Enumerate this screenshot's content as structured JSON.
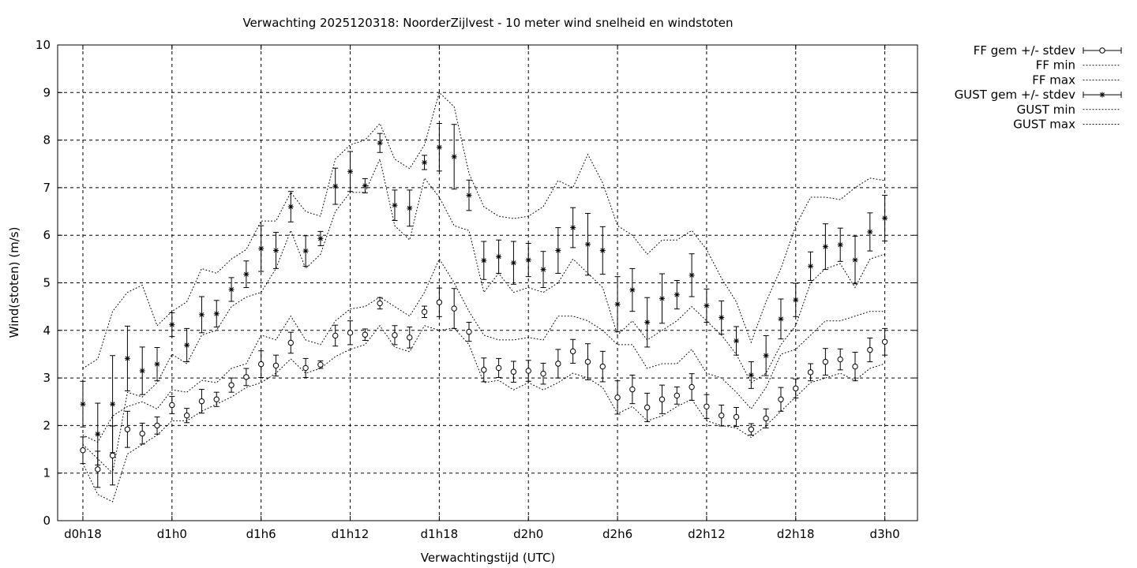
{
  "chart_data": {
    "type": "scatter",
    "title": "Verwachting 2025120318: NoorderZijlvest - 10 meter wind snelheid en windstoten",
    "xlabel": "Verwachtingstijd (UTC)",
    "ylabel": "Wind(stoten) (m/s)",
    "x_unit": "hours since d0h18",
    "xlim": [
      -1.7,
      56.2
    ],
    "ylim": [
      0,
      10
    ],
    "y_ticks": [
      0,
      1,
      2,
      3,
      4,
      5,
      6,
      7,
      8,
      9,
      10
    ],
    "x_tick_labels": [
      {
        "x": 0,
        "label": "d0h18"
      },
      {
        "x": 6,
        "label": "d1h0"
      },
      {
        "x": 12,
        "label": "d1h6"
      },
      {
        "x": 18,
        "label": "d1h12"
      },
      {
        "x": 24,
        "label": "d1h18"
      },
      {
        "x": 30,
        "label": "d2h0"
      },
      {
        "x": 36,
        "label": "d2h6"
      },
      {
        "x": 42,
        "label": "d2h12"
      },
      {
        "x": 48,
        "label": "d2h18"
      },
      {
        "x": 54,
        "label": "d3h0"
      }
    ],
    "grid": true,
    "legend_position": "outside-top-right",
    "series": [
      {
        "name": "FF gem +/- stdev",
        "style": "errorbar",
        "marker": "circle",
        "x": [
          0,
          1,
          2,
          3,
          4,
          5,
          6,
          7,
          8,
          9,
          10,
          11,
          12,
          13,
          14,
          15,
          16,
          17,
          18,
          19,
          20,
          21,
          22,
          23,
          24,
          25,
          26,
          27,
          28,
          29,
          30,
          31,
          32,
          33,
          34,
          35,
          36,
          37,
          38,
          39,
          40,
          41,
          42,
          43,
          44,
          45,
          46,
          47,
          48,
          49,
          50,
          51,
          52,
          53,
          54
        ],
        "mean": [
          1.48,
          1.08,
          1.37,
          1.92,
          1.83,
          2.0,
          2.43,
          2.21,
          2.51,
          2.55,
          2.85,
          3.02,
          3.29,
          3.26,
          3.74,
          3.21,
          3.28,
          3.89,
          3.95,
          3.91,
          4.57,
          3.9,
          3.85,
          4.39,
          4.59,
          4.46,
          3.97,
          3.17,
          3.21,
          3.13,
          3.15,
          3.09,
          3.3,
          3.56,
          3.34,
          3.24,
          2.59,
          2.76,
          2.38,
          2.55,
          2.63,
          2.81,
          2.4,
          2.21,
          2.18,
          1.92,
          2.15,
          2.55,
          2.78,
          3.12,
          3.34,
          3.39,
          3.24,
          3.59,
          3.76
        ],
        "stdev": [
          0.28,
          0.38,
          0.62,
          0.38,
          0.22,
          0.18,
          0.18,
          0.15,
          0.25,
          0.15,
          0.15,
          0.18,
          0.28,
          0.22,
          0.22,
          0.2,
          0.08,
          0.22,
          0.25,
          0.12,
          0.12,
          0.2,
          0.22,
          0.12,
          0.3,
          0.42,
          0.2,
          0.25,
          0.2,
          0.22,
          0.22,
          0.22,
          0.3,
          0.25,
          0.38,
          0.32,
          0.35,
          0.3,
          0.3,
          0.3,
          0.18,
          0.28,
          0.25,
          0.22,
          0.2,
          0.12,
          0.2,
          0.25,
          0.2,
          0.18,
          0.28,
          0.22,
          0.3,
          0.25,
          0.28
        ]
      },
      {
        "name": "FF min",
        "style": "dotted",
        "x": [
          0,
          1,
          2,
          3,
          4,
          5,
          6,
          7,
          8,
          9,
          10,
          11,
          12,
          13,
          14,
          15,
          16,
          17,
          18,
          19,
          20,
          21,
          22,
          23,
          24,
          25,
          26,
          27,
          28,
          29,
          30,
          31,
          32,
          33,
          34,
          35,
          36,
          37,
          38,
          39,
          40,
          41,
          42,
          43,
          44,
          45,
          46,
          47,
          48,
          49,
          50,
          51,
          52,
          53,
          54
        ],
        "values": [
          1.2,
          0.55,
          0.4,
          1.4,
          1.6,
          1.8,
          2.1,
          2.1,
          2.3,
          2.45,
          2.6,
          2.8,
          2.9,
          3.1,
          3.4,
          3.1,
          3.2,
          3.45,
          3.6,
          3.7,
          4.1,
          3.65,
          3.55,
          4.1,
          4.0,
          4.05,
          3.7,
          2.9,
          2.95,
          2.75,
          2.9,
          2.75,
          2.9,
          3.1,
          3.0,
          2.8,
          2.25,
          2.4,
          2.1,
          2.2,
          2.4,
          2.55,
          2.1,
          2.0,
          1.95,
          1.75,
          2.0,
          2.3,
          2.6,
          2.9,
          3.0,
          3.1,
          2.95,
          3.2,
          3.3
        ]
      },
      {
        "name": "FF max",
        "style": "dotted",
        "x": [
          0,
          1,
          2,
          3,
          4,
          5,
          6,
          7,
          8,
          9,
          10,
          11,
          12,
          13,
          14,
          15,
          16,
          17,
          18,
          19,
          20,
          21,
          22,
          23,
          24,
          25,
          26,
          27,
          28,
          29,
          30,
          31,
          32,
          33,
          34,
          35,
          36,
          37,
          38,
          39,
          40,
          41,
          42,
          43,
          44,
          45,
          46,
          47,
          48,
          49,
          50,
          51,
          52,
          53,
          54
        ],
        "values": [
          1.8,
          1.65,
          2.2,
          2.4,
          2.5,
          2.35,
          2.75,
          2.7,
          2.95,
          2.9,
          3.2,
          3.3,
          3.9,
          3.8,
          4.3,
          3.8,
          3.7,
          4.2,
          4.45,
          4.5,
          4.7,
          4.5,
          4.3,
          4.8,
          5.5,
          5.0,
          4.4,
          3.9,
          3.8,
          3.8,
          3.85,
          3.8,
          4.3,
          4.3,
          4.2,
          4.0,
          3.7,
          3.7,
          3.2,
          3.3,
          3.3,
          3.6,
          3.1,
          3.0,
          2.7,
          2.35,
          2.8,
          3.5,
          3.6,
          3.9,
          4.2,
          4.2,
          4.3,
          4.4,
          4.4
        ]
      },
      {
        "name": "GUST gem +/- stdev",
        "style": "errorbar",
        "marker": "star",
        "x": [
          0,
          1,
          2,
          3,
          4,
          5,
          6,
          7,
          8,
          9,
          10,
          11,
          12,
          13,
          14,
          15,
          16,
          17,
          18,
          19,
          20,
          21,
          22,
          23,
          24,
          25,
          26,
          27,
          28,
          29,
          30,
          31,
          32,
          33,
          34,
          35,
          36,
          37,
          38,
          39,
          40,
          41,
          42,
          43,
          44,
          45,
          46,
          47,
          48,
          49,
          50,
          51,
          52,
          53,
          54
        ],
        "mean": [
          2.45,
          1.82,
          2.45,
          3.41,
          3.15,
          3.29,
          4.12,
          3.69,
          4.33,
          4.35,
          4.86,
          5.18,
          5.72,
          5.68,
          6.6,
          5.67,
          5.93,
          7.03,
          7.34,
          7.04,
          7.94,
          6.63,
          6.57,
          7.53,
          7.85,
          7.65,
          6.84,
          5.47,
          5.55,
          5.42,
          5.48,
          5.28,
          5.68,
          6.16,
          5.81,
          5.68,
          4.55,
          4.85,
          4.17,
          4.67,
          4.75,
          5.16,
          4.52,
          4.27,
          3.78,
          3.06,
          3.47,
          4.24,
          4.64,
          5.35,
          5.76,
          5.8,
          5.48,
          6.07,
          6.36
        ],
        "stdev": [
          0.48,
          0.65,
          1.02,
          0.68,
          0.5,
          0.35,
          0.25,
          0.35,
          0.38,
          0.28,
          0.25,
          0.28,
          0.48,
          0.38,
          0.32,
          0.32,
          0.15,
          0.38,
          0.42,
          0.15,
          0.2,
          0.32,
          0.38,
          0.15,
          0.5,
          0.68,
          0.32,
          0.4,
          0.35,
          0.45,
          0.35,
          0.38,
          0.48,
          0.42,
          0.65,
          0.5,
          0.58,
          0.45,
          0.52,
          0.52,
          0.3,
          0.45,
          0.35,
          0.35,
          0.3,
          0.28,
          0.42,
          0.42,
          0.35,
          0.3,
          0.48,
          0.35,
          0.5,
          0.4,
          0.48
        ]
      },
      {
        "name": "GUST min",
        "style": "dotted",
        "x": [
          0,
          1,
          2,
          3,
          4,
          5,
          6,
          7,
          8,
          9,
          10,
          11,
          12,
          13,
          14,
          15,
          16,
          17,
          18,
          19,
          20,
          21,
          22,
          23,
          24,
          25,
          26,
          27,
          28,
          29,
          30,
          31,
          32,
          33,
          34,
          35,
          36,
          37,
          38,
          39,
          40,
          41,
          42,
          43,
          44,
          45,
          46,
          47,
          48,
          49,
          50,
          51,
          52,
          53,
          54
        ],
        "values": [
          1.6,
          1.3,
          1.0,
          2.7,
          2.6,
          2.9,
          3.5,
          3.3,
          3.9,
          4.0,
          4.5,
          4.7,
          4.8,
          5.3,
          6.1,
          5.3,
          5.6,
          6.5,
          6.9,
          6.9,
          7.6,
          6.2,
          5.9,
          7.2,
          6.8,
          6.2,
          6.1,
          4.8,
          5.2,
          4.8,
          4.9,
          4.8,
          5.0,
          5.5,
          5.2,
          4.9,
          3.9,
          4.2,
          3.8,
          4.0,
          4.2,
          4.5,
          4.2,
          3.9,
          3.5,
          2.9,
          3.1,
          3.7,
          4.1,
          5.0,
          5.3,
          5.4,
          4.9,
          5.5,
          5.6
        ]
      },
      {
        "name": "GUST max",
        "style": "dotted",
        "x": [
          0,
          1,
          2,
          3,
          4,
          5,
          6,
          7,
          8,
          9,
          10,
          11,
          12,
          13,
          14,
          15,
          16,
          17,
          18,
          19,
          20,
          21,
          22,
          23,
          24,
          25,
          26,
          27,
          28,
          29,
          30,
          31,
          32,
          33,
          34,
          35,
          36,
          37,
          38,
          39,
          40,
          41,
          42,
          43,
          44,
          45,
          46,
          47,
          48,
          49,
          50,
          51,
          52,
          53,
          54
        ],
        "values": [
          3.2,
          3.4,
          4.4,
          4.8,
          4.95,
          4.1,
          4.4,
          4.6,
          5.3,
          5.2,
          5.5,
          5.7,
          6.3,
          6.3,
          6.9,
          6.5,
          6.4,
          7.6,
          7.9,
          8.0,
          8.35,
          7.6,
          7.4,
          7.9,
          9.0,
          8.7,
          7.3,
          6.6,
          6.4,
          6.35,
          6.4,
          6.6,
          7.15,
          7.0,
          7.7,
          7.1,
          6.2,
          6.0,
          5.6,
          5.9,
          5.9,
          6.1,
          5.7,
          5.1,
          4.6,
          3.75,
          4.6,
          5.3,
          6.2,
          6.8,
          6.8,
          6.75,
          7.0,
          7.2,
          7.15
        ]
      }
    ]
  }
}
